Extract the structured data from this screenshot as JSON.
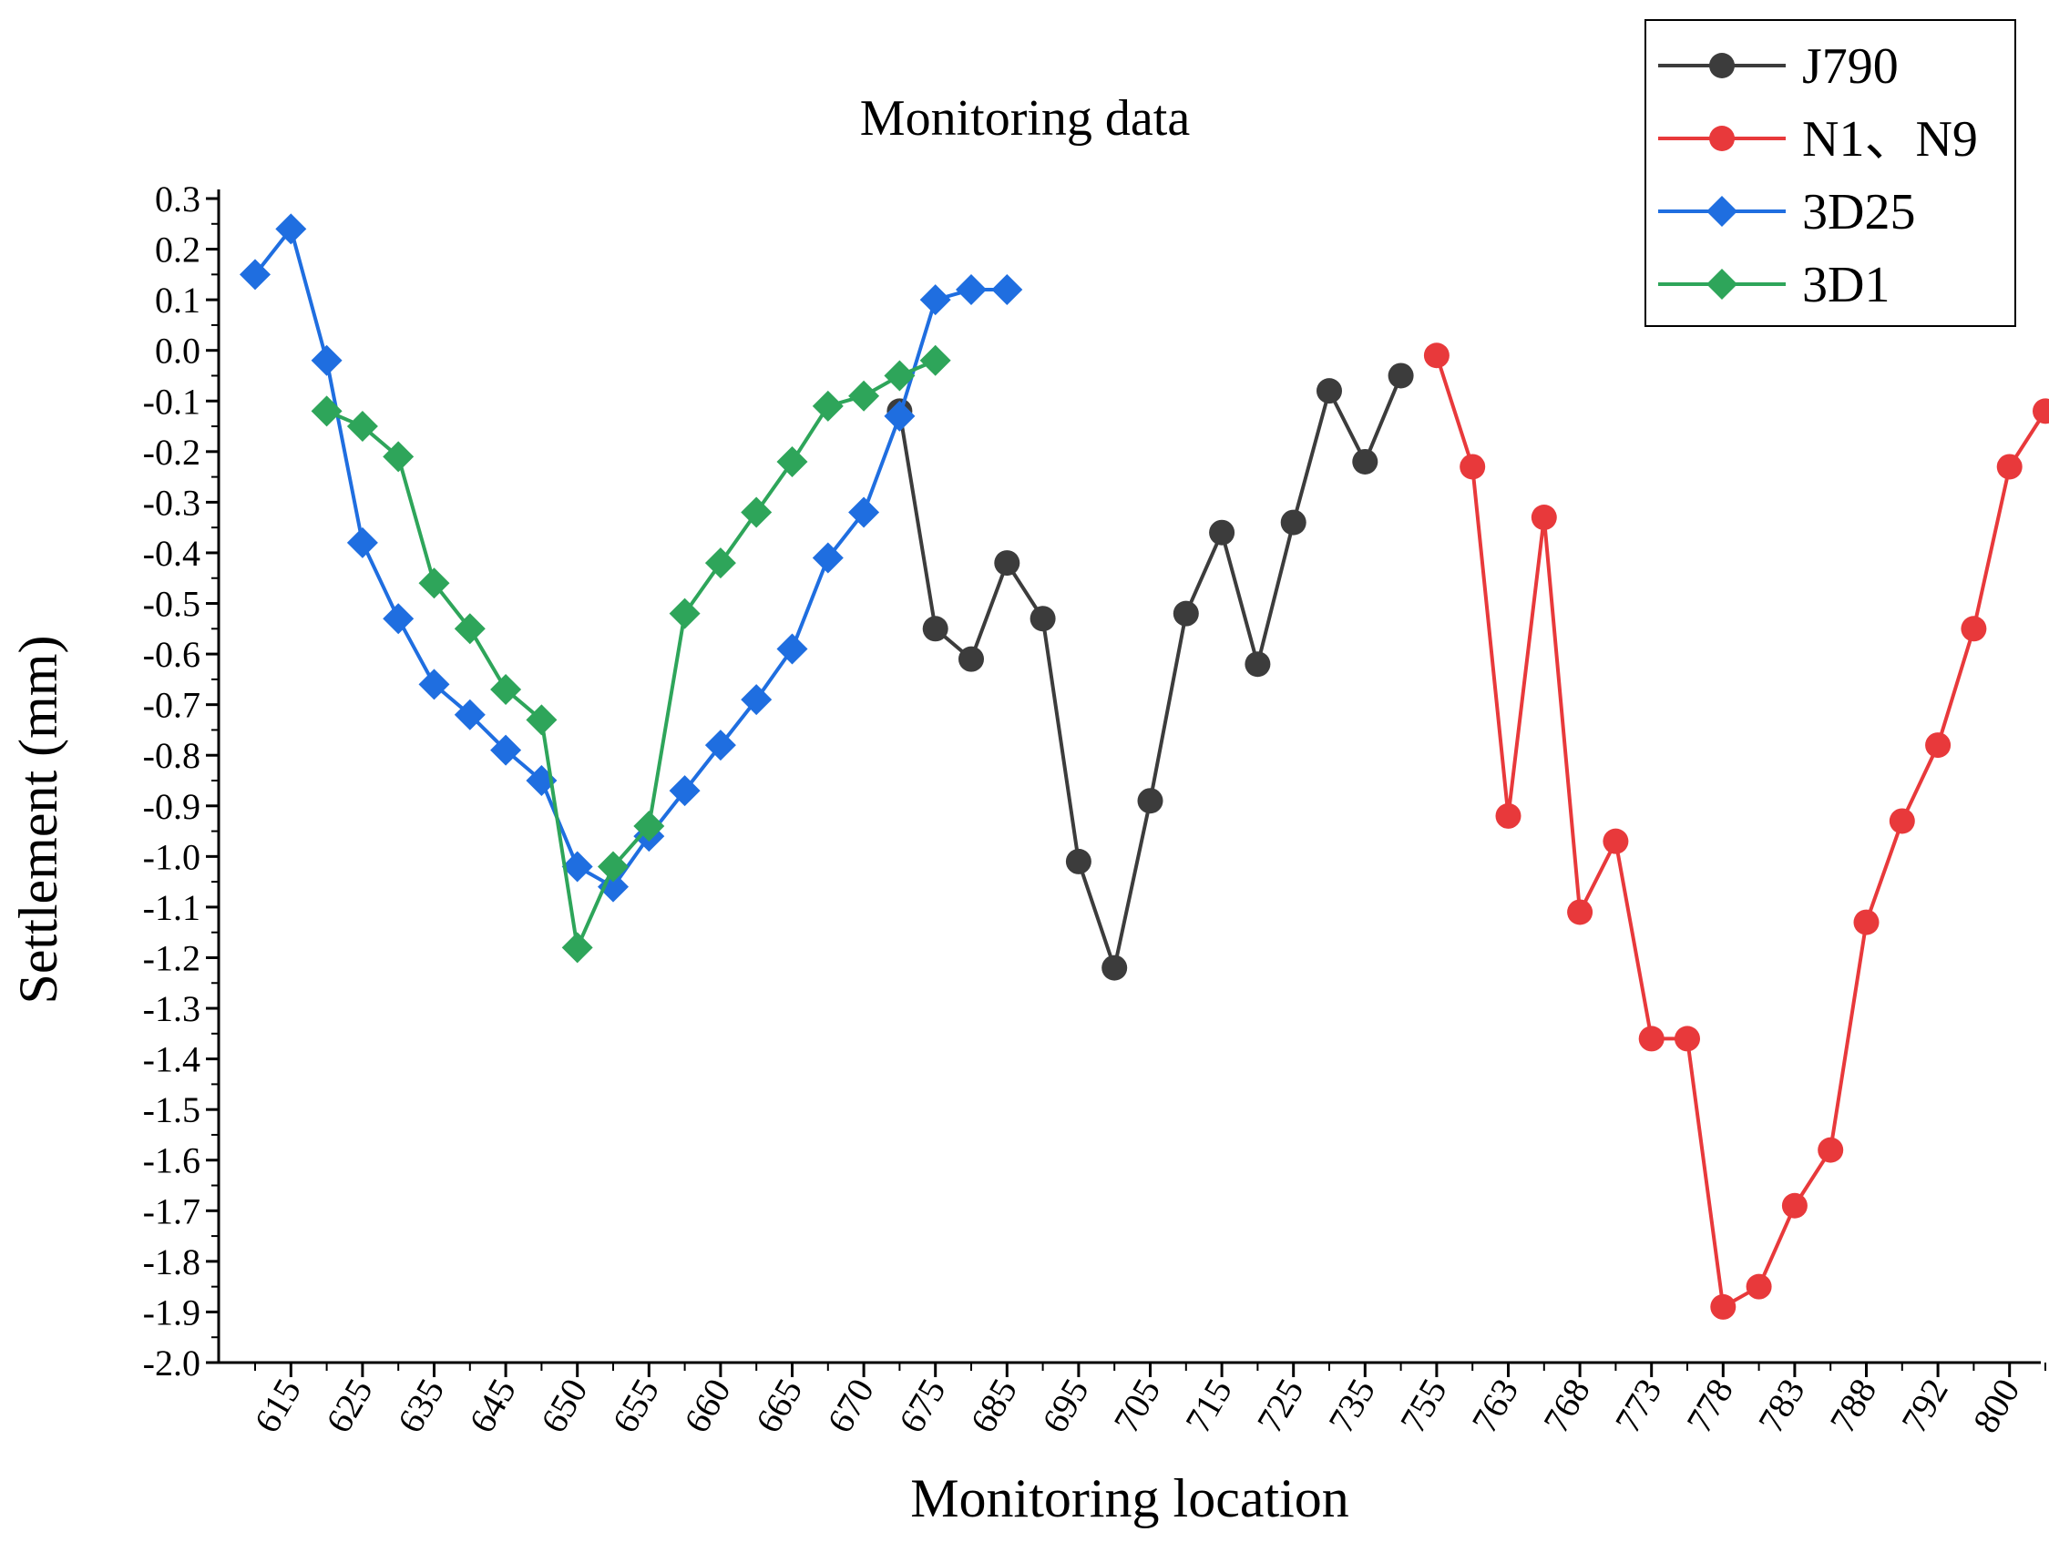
{
  "chart_data": {
    "type": "line",
    "title": "Monitoring data",
    "xlabel": "Monitoring location",
    "ylabel": "Settlement (mm)",
    "ylim": [
      -2.0,
      0.3
    ],
    "y_ticks": [
      "0.3",
      "0.2",
      "0.1",
      "0.0",
      "-0.1",
      "-0.2",
      "-0.3",
      "-0.4",
      "-0.5",
      "-0.6",
      "-0.7",
      "-0.8",
      "-0.9",
      "-1.0",
      "-1.1",
      "-1.2",
      "-1.3",
      "-1.4",
      "-1.5",
      "-1.6",
      "-1.7",
      "-1.8",
      "-1.9",
      "-2.0"
    ],
    "x_tick_labels": [
      "615",
      "625",
      "635",
      "645",
      "650",
      "655",
      "660",
      "665",
      "670",
      "675",
      "685",
      "695",
      "705",
      "715",
      "725",
      "735",
      "755",
      "763",
      "768",
      "773",
      "778",
      "783",
      "788",
      "792",
      "800"
    ],
    "x_index_range": [
      0,
      50
    ],
    "legend_position": "top-right",
    "series": [
      {
        "name": "J790",
        "color": "#3c3c3c",
        "marker": "circle",
        "x_index": [
          18,
          19,
          20,
          21,
          22,
          23,
          24,
          25,
          26,
          27,
          28,
          29,
          30,
          31,
          32
        ],
        "values": [
          -0.12,
          -0.55,
          -0.61,
          -0.42,
          -0.53,
          -1.01,
          -1.22,
          -0.89,
          -0.52,
          -0.36,
          -0.62,
          -0.34,
          -0.08,
          -0.22,
          -0.05
        ]
      },
      {
        "name": "N1、N9",
        "color": "#e8393b",
        "marker": "circle",
        "x_index": [
          33,
          34,
          35,
          36,
          37,
          38,
          39,
          40,
          41,
          42,
          43,
          44,
          45,
          46,
          47,
          48,
          49,
          50
        ],
        "values": [
          -0.01,
          -0.23,
          -0.92,
          -0.33,
          -1.11,
          -0.97,
          -1.36,
          -1.36,
          -1.89,
          -1.85,
          -1.69,
          -1.58,
          -1.13,
          -0.93,
          -0.78,
          -0.55,
          -0.23,
          -0.12
        ]
      },
      {
        "name": "3D25",
        "color": "#1f6ee0",
        "marker": "diamond",
        "x_index": [
          0,
          1,
          2,
          3,
          4,
          5,
          6,
          7,
          8,
          9,
          10,
          11,
          12,
          13,
          14,
          15,
          16,
          17,
          18,
          19,
          20,
          21
        ],
        "values": [
          0.15,
          0.24,
          -0.02,
          -0.38,
          -0.53,
          -0.66,
          -0.72,
          -0.79,
          -0.85,
          -1.02,
          -1.06,
          -0.96,
          -0.87,
          -0.78,
          -0.69,
          -0.59,
          -0.41,
          -0.32,
          -0.13,
          0.1,
          0.12,
          0.12
        ]
      },
      {
        "name": "3D1",
        "color": "#2ea55a",
        "marker": "diamond",
        "x_index": [
          2,
          3,
          4,
          5,
          6,
          7,
          8,
          9,
          10,
          11,
          12,
          13,
          14,
          15,
          16,
          17,
          18,
          19
        ],
        "values": [
          -0.12,
          -0.15,
          -0.21,
          -0.46,
          -0.55,
          -0.67,
          -0.73,
          -1.18,
          -1.02,
          -0.94,
          -0.52,
          -0.42,
          -0.32,
          -0.22,
          -0.11,
          -0.09,
          -0.05,
          -0.02
        ]
      }
    ]
  }
}
